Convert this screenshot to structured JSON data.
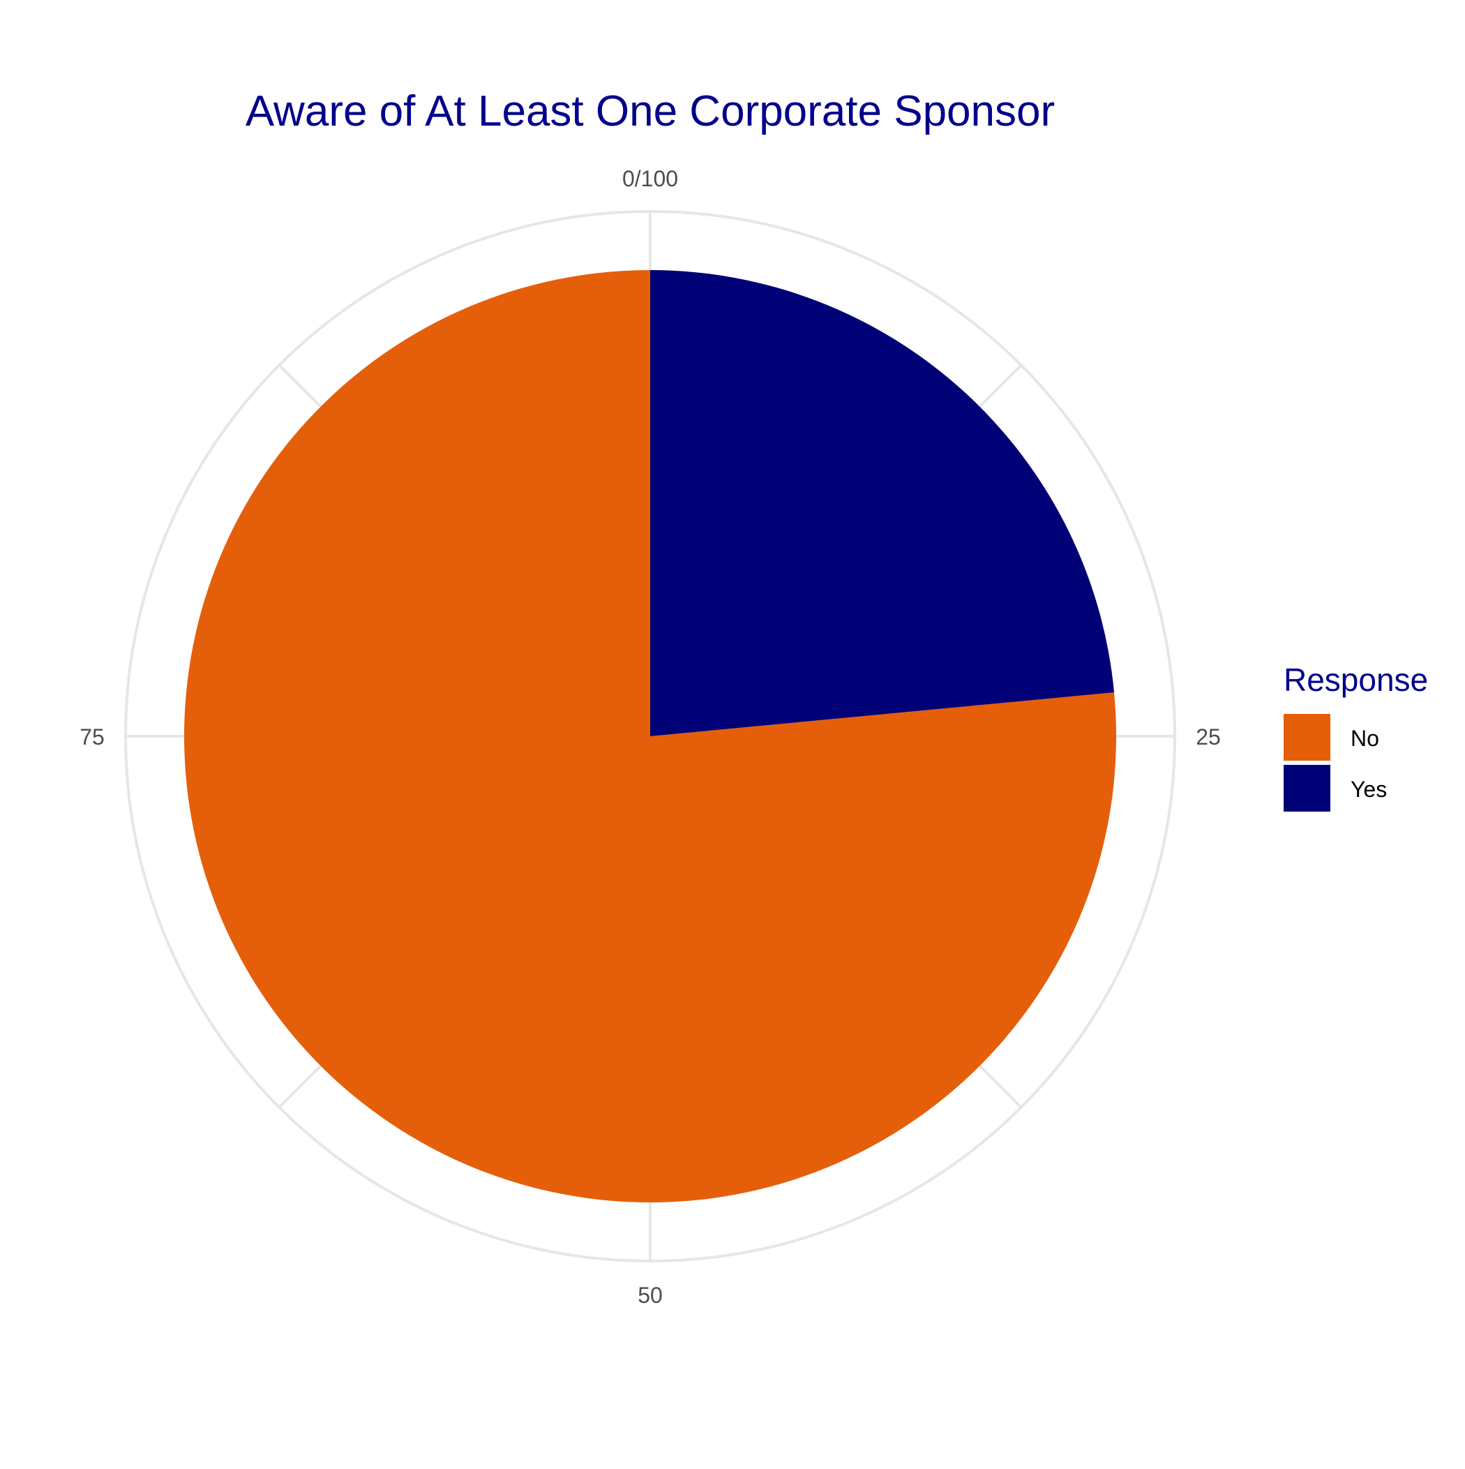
{
  "chart_data": {
    "type": "pie",
    "title": "Aware of At Least One Corporate Sponsor",
    "legend": {
      "title": "Response",
      "position": "right"
    },
    "slices": [
      {
        "label": "No",
        "value": 76.5,
        "color": "#E55F0A"
      },
      {
        "label": "Yes",
        "value": 23.5,
        "color": "#000077"
      }
    ],
    "angular_axis": {
      "range": [
        0,
        100
      ],
      "tick_labels": [
        "0/100",
        "25",
        "50",
        "75"
      ],
      "tick_values": [
        0,
        25,
        50,
        75
      ]
    },
    "grid": true
  },
  "colors": {
    "title": "#00008B",
    "grid": "#E6E6E6",
    "tick_text": "#4D4D4D"
  }
}
